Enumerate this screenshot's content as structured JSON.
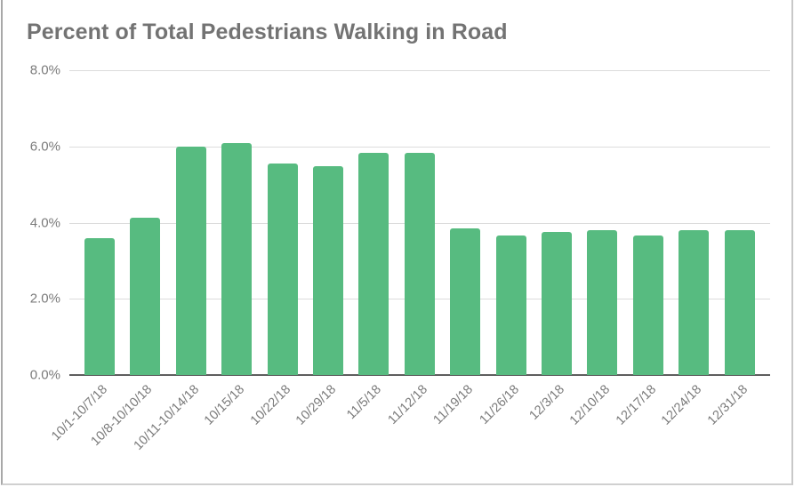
{
  "chart_data": {
    "type": "bar",
    "title": "Percent of Total Pedestrians Walking in Road",
    "xlabel": "",
    "ylabel": "",
    "ylim": [
      0,
      8
    ],
    "yticks": [
      "0.0%",
      "2.0%",
      "4.0%",
      "6.0%",
      "8.0%"
    ],
    "grid": true,
    "legend": "none",
    "bar_color": "#57bb80",
    "categories": [
      "10/1-10/7/18",
      "10/8-10/10/18",
      "10/11-10/14/18",
      "10/15/18",
      "10/22/18",
      "10/29/18",
      "11/5/18",
      "11/12/18",
      "11/19/18",
      "11/26/18",
      "12/3/18",
      "12/10/18",
      "12/17/18",
      "12/24/18",
      "12/31/18"
    ],
    "values": [
      3.6,
      4.12,
      6.0,
      6.08,
      5.56,
      5.49,
      5.82,
      5.82,
      3.84,
      3.67,
      3.75,
      3.8,
      3.67,
      3.8,
      3.8
    ],
    "units": "%"
  }
}
